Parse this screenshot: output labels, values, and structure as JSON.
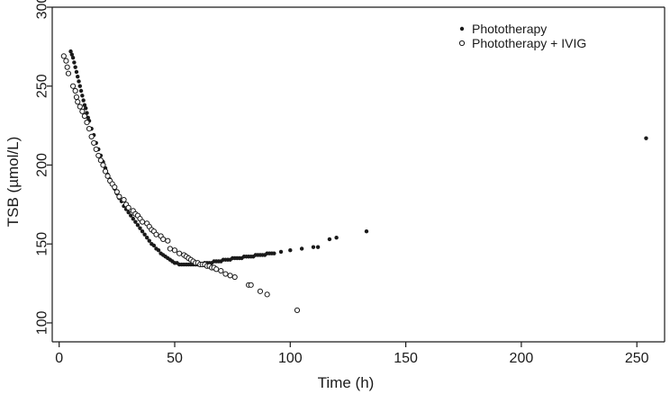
{
  "chart_data": {
    "type": "scatter",
    "title": "",
    "xlabel": "Time (h)",
    "ylabel": "TSB (µmol/L)",
    "xlim": [
      -3,
      262
    ],
    "ylim": [
      88,
      300
    ],
    "xticks": [
      0,
      50,
      100,
      150,
      200,
      250
    ],
    "yticks": [
      100,
      150,
      200,
      250,
      300
    ],
    "legend_position": "top-right",
    "series": [
      {
        "name": "Phototherapy",
        "marker": "filled",
        "color": "#1a1a1a",
        "points": [
          [
            5,
            272
          ],
          [
            5.5,
            270
          ],
          [
            6,
            268
          ],
          [
            6.5,
            265
          ],
          [
            7,
            262
          ],
          [
            7.5,
            259
          ],
          [
            8,
            256
          ],
          [
            8.5,
            253
          ],
          [
            9,
            250
          ],
          [
            9.5,
            247
          ],
          [
            10,
            244
          ],
          [
            10.5,
            241
          ],
          [
            11,
            238
          ],
          [
            11.5,
            236
          ],
          [
            12,
            233
          ],
          [
            12.5,
            230
          ],
          [
            13,
            228
          ],
          [
            14,
            223
          ],
          [
            15,
            219
          ],
          [
            16,
            214
          ],
          [
            17,
            210
          ],
          [
            18,
            206
          ],
          [
            19,
            202
          ],
          [
            20,
            198
          ],
          [
            21,
            194
          ],
          [
            22,
            191
          ],
          [
            23,
            188
          ],
          [
            24,
            185
          ],
          [
            25,
            182
          ],
          [
            26,
            179
          ],
          [
            27,
            177
          ],
          [
            28,
            174
          ],
          [
            29,
            172
          ],
          [
            30,
            170
          ],
          [
            31,
            168
          ],
          [
            32,
            166
          ],
          [
            33,
            164
          ],
          [
            34,
            162
          ],
          [
            35,
            160
          ],
          [
            36,
            158
          ],
          [
            37,
            156
          ],
          [
            38,
            154
          ],
          [
            39,
            152
          ],
          [
            40,
            150
          ],
          [
            41,
            149
          ],
          [
            42,
            147
          ],
          [
            43,
            146
          ],
          [
            44,
            144
          ],
          [
            45,
            143
          ],
          [
            46,
            142
          ],
          [
            47,
            141
          ],
          [
            48,
            140
          ],
          [
            49,
            139
          ],
          [
            50,
            138
          ],
          [
            51,
            138
          ],
          [
            52,
            137
          ],
          [
            53,
            137
          ],
          [
            54,
            137
          ],
          [
            55,
            137
          ],
          [
            56,
            137
          ],
          [
            57,
            137
          ],
          [
            58,
            137
          ],
          [
            59,
            137
          ],
          [
            60,
            137
          ],
          [
            61,
            137
          ],
          [
            62,
            137
          ],
          [
            63,
            138
          ],
          [
            64,
            138
          ],
          [
            65,
            138
          ],
          [
            66,
            138
          ],
          [
            67,
            139
          ],
          [
            68,
            139
          ],
          [
            69,
            139
          ],
          [
            70,
            139
          ],
          [
            71,
            140
          ],
          [
            72,
            140
          ],
          [
            73,
            140
          ],
          [
            74,
            140
          ],
          [
            75,
            141
          ],
          [
            76,
            141
          ],
          [
            77,
            141
          ],
          [
            78,
            141
          ],
          [
            79,
            141
          ],
          [
            80,
            142
          ],
          [
            81,
            142
          ],
          [
            82,
            142
          ],
          [
            83,
            142
          ],
          [
            84,
            142
          ],
          [
            85,
            143
          ],
          [
            86,
            143
          ],
          [
            87,
            143
          ],
          [
            88,
            143
          ],
          [
            89,
            143
          ],
          [
            90,
            144
          ],
          [
            91,
            144
          ],
          [
            92,
            144
          ],
          [
            93,
            144
          ],
          [
            96,
            145
          ],
          [
            100,
            146
          ],
          [
            105,
            147
          ],
          [
            110,
            148
          ],
          [
            112,
            148
          ],
          [
            117,
            153
          ],
          [
            120,
            154
          ],
          [
            133,
            158
          ],
          [
            254,
            217
          ]
        ]
      },
      {
        "name": "Phototherapy + IVIG",
        "marker": "open",
        "color": "#1a1a1a",
        "points": [
          [
            2,
            269
          ],
          [
            3,
            266
          ],
          [
            3.5,
            262
          ],
          [
            4,
            258
          ],
          [
            6,
            250
          ],
          [
            7,
            247
          ],
          [
            7.5,
            243
          ],
          [
            8,
            240
          ],
          [
            9,
            237
          ],
          [
            10,
            234
          ],
          [
            11,
            231
          ],
          [
            12,
            227
          ],
          [
            13,
            223
          ],
          [
            14,
            218
          ],
          [
            15,
            214
          ],
          [
            16,
            210
          ],
          [
            17,
            206
          ],
          [
            18,
            203
          ],
          [
            19,
            200
          ],
          [
            20,
            196
          ],
          [
            21,
            193
          ],
          [
            22,
            190
          ],
          [
            23,
            188
          ],
          [
            24,
            186
          ],
          [
            25,
            183
          ],
          [
            26,
            180
          ],
          [
            28,
            178
          ],
          [
            29,
            175
          ],
          [
            30,
            173
          ],
          [
            32,
            171
          ],
          [
            33,
            169
          ],
          [
            34,
            168
          ],
          [
            35,
            166
          ],
          [
            36,
            164
          ],
          [
            38,
            163
          ],
          [
            39,
            161
          ],
          [
            40,
            159
          ],
          [
            41,
            158
          ],
          [
            42,
            156
          ],
          [
            44,
            155
          ],
          [
            45,
            153
          ],
          [
            47,
            152
          ],
          [
            48,
            147
          ],
          [
            50,
            146
          ],
          [
            52,
            144
          ],
          [
            54,
            143
          ],
          [
            55,
            142
          ],
          [
            56,
            141
          ],
          [
            57,
            140
          ],
          [
            58,
            139
          ],
          [
            59,
            138
          ],
          [
            60,
            138
          ],
          [
            61,
            137
          ],
          [
            62,
            137
          ],
          [
            63,
            137
          ],
          [
            64,
            136
          ],
          [
            65,
            136
          ],
          [
            66,
            135
          ],
          [
            67,
            135
          ],
          [
            68,
            134
          ],
          [
            70,
            133
          ],
          [
            72,
            131
          ],
          [
            74,
            130
          ],
          [
            76,
            129
          ],
          [
            82,
            124
          ],
          [
            83,
            124
          ],
          [
            87,
            120
          ],
          [
            90,
            118
          ],
          [
            103,
            108
          ]
        ]
      }
    ]
  }
}
